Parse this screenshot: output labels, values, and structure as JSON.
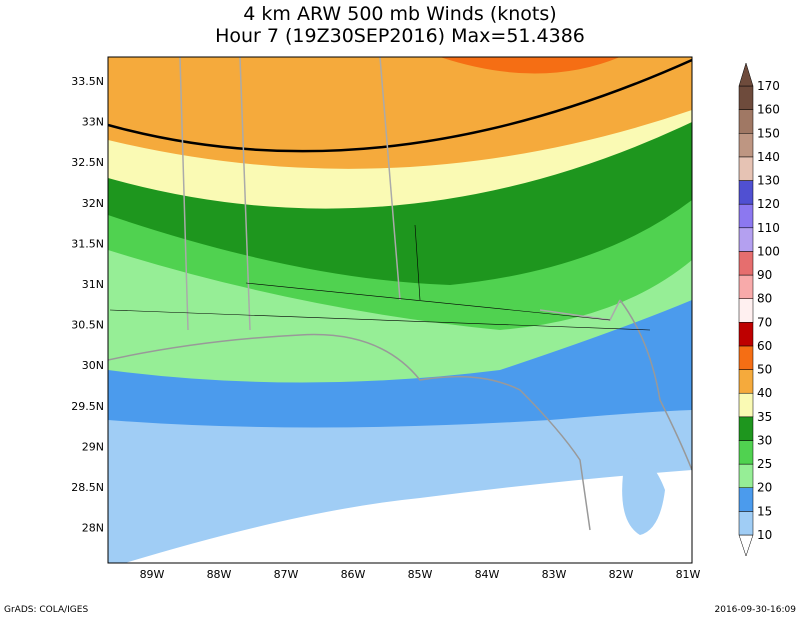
{
  "title": [
    "4 km ARW 500 mb Winds (knots)",
    "Hour 7 (19Z30SEP2016) Max=51.4386"
  ],
  "map": {
    "lat_labels": [
      "33.5N",
      "33N",
      "32.5N",
      "32N",
      "31.5N",
      "31N",
      "30.5N",
      "30N",
      "29.5N",
      "29N",
      "28.5N",
      "28N"
    ],
    "lon_labels": [
      "89W",
      "88W",
      "87W",
      "86W",
      "85W",
      "84W",
      "83W",
      "82W",
      "81W"
    ]
  },
  "colorbar": {
    "levels": [
      10,
      15,
      20,
      25,
      30,
      35,
      40,
      50,
      60,
      70,
      80,
      90,
      100,
      110,
      120,
      130,
      140,
      150,
      160,
      170
    ],
    "colors": [
      "#ffffff",
      "#a0cdf5",
      "#4b9bed",
      "#96ee96",
      "#50d250",
      "#1e961e",
      "#fafab4",
      "#f5aa3c",
      "#f56e14",
      "#be0000",
      "#fff0f0",
      "#f8aaaa",
      "#e66e6e",
      "#b4a0f0",
      "#8c78f0",
      "#5050d2",
      "#e6c3b4",
      "#be9682",
      "#a07864",
      "#6e4b3c"
    ]
  },
  "footer": {
    "left": "GrADS: COLA/IGES",
    "right": "2016-09-30-16:09"
  }
}
